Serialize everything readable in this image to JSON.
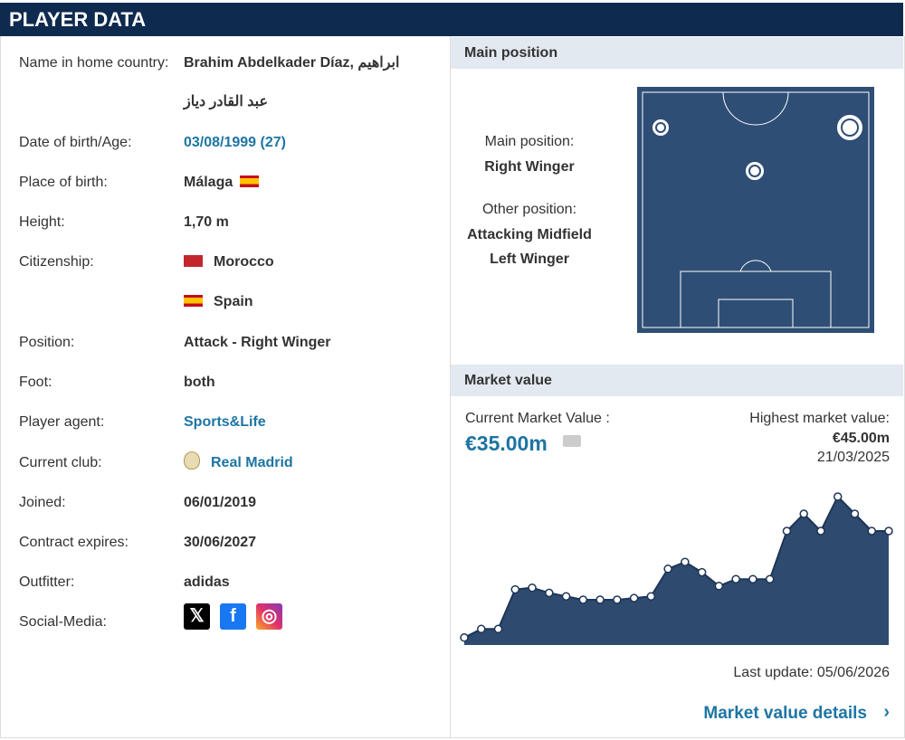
{
  "header": {
    "title": "PLAYER DATA"
  },
  "player_info": {
    "rows": [
      {
        "label": "Name in home country:",
        "values": [
          "Brahim Abdelkader Díaz, ابراهيم عبد القادر دياز"
        ]
      },
      {
        "label": "Date of birth/Age:",
        "values": [
          "03/08/1999 (27)"
        ]
      },
      {
        "label": "Place of birth:",
        "values": [
          "Málaga"
        ]
      },
      {
        "label": "Height:",
        "values": [
          "1,70 m"
        ]
      },
      {
        "label": "Citizenship:",
        "values": [
          "Morocco",
          "Spain"
        ]
      },
      {
        "label": "Position:",
        "values": [
          "Attack - Right Winger"
        ]
      },
      {
        "label": "Foot:",
        "values": [
          "both"
        ]
      },
      {
        "label": "Player agent:",
        "values": [
          "Sports&Life"
        ]
      },
      {
        "label": "Current club:",
        "values": [
          "Real Madrid"
        ]
      },
      {
        "label": "Joined:",
        "values": [
          "06/01/2019"
        ]
      },
      {
        "label": "Contract expires:",
        "values": [
          "30/06/2027"
        ]
      },
      {
        "label": "Outfitter:",
        "values": [
          "adidas"
        ]
      },
      {
        "label": "Social-Media:"
      }
    ]
  },
  "main_position": {
    "title": "Main position",
    "main_label": "Main position:",
    "main": "Right Winger",
    "other_label": "Other position:",
    "other": [
      "Attacking Midfield",
      "Left Winger"
    ]
  },
  "market_value": {
    "title": "Market value",
    "current_label": "Current Market Value :",
    "current": "€35.00m",
    "highest_label": "Highest market value:",
    "highest": "€45.00m",
    "highest_date": "21/03/2025",
    "chart": {
      "type": "area",
      "color": "#2e4a6e",
      "values": [
        4,
        6.5,
        6.5,
        18,
        18.5,
        17,
        16,
        15,
        15,
        15,
        15.5,
        16,
        24,
        26,
        23,
        19,
        21,
        21,
        21,
        35,
        40,
        35,
        45,
        40,
        35,
        35
      ]
    },
    "last_update": "Last update: 05/06/2026",
    "details_link": "Market value details"
  }
}
